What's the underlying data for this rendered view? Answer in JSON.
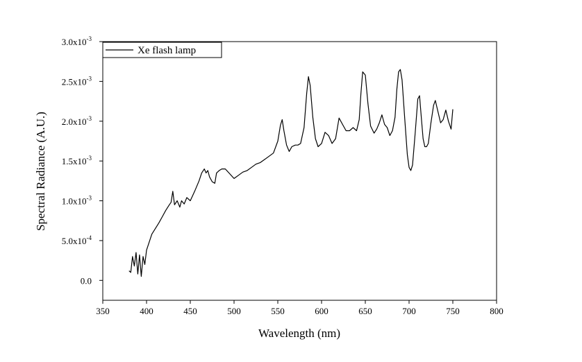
{
  "chart_data": {
    "type": "line",
    "title": "",
    "xlabel": "Wavelength (nm)",
    "ylabel": "Spectral Radiance (A.U.)",
    "xlim": [
      350,
      800
    ],
    "ylim": [
      -0.00025,
      0.003
    ],
    "grid": false,
    "legend_position": "top-left",
    "x_ticks": [
      {
        "value": 350,
        "label": "350"
      },
      {
        "value": 400,
        "label": "400"
      },
      {
        "value": 450,
        "label": "450"
      },
      {
        "value": 500,
        "label": "500"
      },
      {
        "value": 550,
        "label": "550"
      },
      {
        "value": 600,
        "label": "600"
      },
      {
        "value": 650,
        "label": "650"
      },
      {
        "value": 700,
        "label": "700"
      },
      {
        "value": 750,
        "label": "750"
      },
      {
        "value": 800,
        "label": "800"
      }
    ],
    "y_ticks": [
      {
        "value": 0,
        "base": "0.0",
        "exp": ""
      },
      {
        "value": 0.0005,
        "base": "5.0x10",
        "exp": "-4"
      },
      {
        "value": 0.001,
        "base": "1.0x10",
        "exp": "-3"
      },
      {
        "value": 0.0015,
        "base": "1.5x10",
        "exp": "-3"
      },
      {
        "value": 0.002,
        "base": "2.0x10",
        "exp": "-3"
      },
      {
        "value": 0.0025,
        "base": "2.5x10",
        "exp": "-3"
      },
      {
        "value": 0.003,
        "base": "3.0x10",
        "exp": "-3"
      }
    ],
    "series": [
      {
        "name": "Xe flash lamp",
        "color": "#000000",
        "x": [
          380,
          382,
          384,
          386,
          388,
          390,
          392,
          394,
          396,
          398,
          400,
          403,
          406,
          410,
          414,
          418,
          422,
          426,
          428,
          430,
          432,
          435,
          438,
          440,
          443,
          446,
          450,
          455,
          460,
          463,
          466,
          468,
          470,
          472,
          475,
          478,
          480,
          483,
          486,
          490,
          495,
          500,
          505,
          510,
          515,
          520,
          525,
          530,
          535,
          540,
          545,
          550,
          553,
          555,
          557,
          560,
          563,
          566,
          570,
          573,
          576,
          580,
          583,
          585,
          587,
          590,
          593,
          596,
          600,
          604,
          608,
          612,
          616,
          620,
          624,
          628,
          632,
          636,
          640,
          643,
          645,
          647,
          650,
          653,
          656,
          660,
          663,
          666,
          669,
          672,
          675,
          678,
          681,
          684,
          686,
          688,
          690,
          692,
          695,
          698,
          700,
          702,
          704,
          707,
          710,
          712,
          714,
          716,
          718,
          720,
          722,
          725,
          728,
          730,
          733,
          736,
          739,
          742,
          745,
          748,
          750
        ],
        "values": [
          0.00012,
          0.0001,
          0.0003,
          0.00018,
          0.00035,
          8e-05,
          0.00032,
          5e-05,
          0.0003,
          0.0002,
          0.00038,
          0.00048,
          0.00058,
          0.00065,
          0.00072,
          0.0008,
          0.00088,
          0.00095,
          0.00098,
          0.00112,
          0.00095,
          0.001,
          0.00092,
          0.001,
          0.00096,
          0.00104,
          0.001,
          0.00112,
          0.00125,
          0.00135,
          0.0014,
          0.00135,
          0.00138,
          0.0013,
          0.00124,
          0.00122,
          0.00135,
          0.00138,
          0.0014,
          0.0014,
          0.00134,
          0.00128,
          0.00132,
          0.00136,
          0.00138,
          0.00142,
          0.00146,
          0.00148,
          0.00152,
          0.00156,
          0.0016,
          0.00175,
          0.00195,
          0.00202,
          0.00188,
          0.0017,
          0.00162,
          0.00168,
          0.0017,
          0.0017,
          0.00172,
          0.00192,
          0.00235,
          0.00256,
          0.00245,
          0.00205,
          0.00178,
          0.00168,
          0.00172,
          0.00186,
          0.00182,
          0.00172,
          0.00178,
          0.00204,
          0.00196,
          0.00188,
          0.00188,
          0.00192,
          0.00188,
          0.00202,
          0.00235,
          0.00262,
          0.00258,
          0.00222,
          0.00194,
          0.00185,
          0.0019,
          0.00198,
          0.00208,
          0.00196,
          0.00192,
          0.00182,
          0.00188,
          0.00205,
          0.0024,
          0.00262,
          0.00265,
          0.00252,
          0.00204,
          0.00158,
          0.00142,
          0.00138,
          0.00145,
          0.00185,
          0.00228,
          0.00232,
          0.00205,
          0.00178,
          0.00168,
          0.00168,
          0.00172,
          0.00198,
          0.0022,
          0.00226,
          0.00212,
          0.00198,
          0.00202,
          0.00214,
          0.002,
          0.0019,
          0.00215
        ]
      }
    ]
  }
}
